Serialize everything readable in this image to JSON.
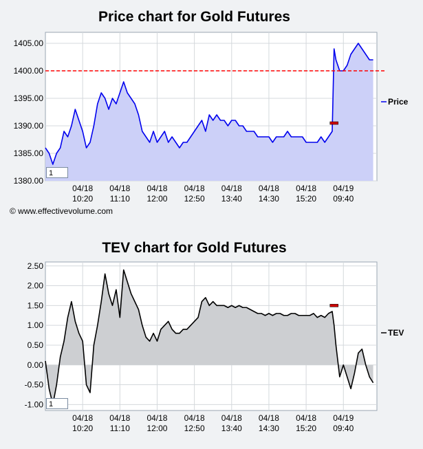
{
  "copyright": "© www.effectivevolume.com",
  "chart_data": [
    {
      "type": "area",
      "title": "Price chart for Gold Futures",
      "legend": "Price",
      "legend_position": "right",
      "series_color": "#0000ee",
      "fill_color": "#ccd0f8",
      "ylim": [
        1380,
        1407
      ],
      "y_ticks": [
        1380.0,
        1385.0,
        1390.0,
        1395.0,
        1400.0,
        1405.0
      ],
      "y_tick_labels": [
        "1380.00",
        "1385.00",
        "1390.00",
        "1395.00",
        "1400.00",
        "1405.00"
      ],
      "x_ticks": [
        10,
        20,
        30,
        40,
        50,
        60,
        70,
        80
      ],
      "x_tick_labels": [
        [
          "04/18",
          "10:20"
        ],
        [
          "04/18",
          "11:10"
        ],
        [
          "04/18",
          "12:00"
        ],
        [
          "04/18",
          "12:50"
        ],
        [
          "04/18",
          "13:40"
        ],
        [
          "04/18",
          "14:30"
        ],
        [
          "04/18",
          "15:20"
        ],
        [
          "04/19",
          "09:40"
        ]
      ],
      "xlim": [
        0,
        89
      ],
      "reference_line": {
        "value": 1400.0,
        "color": "#ff0000",
        "style": "dashed"
      },
      "marker": {
        "x": 77.5,
        "y": 1390.5,
        "color": "#cc0000"
      },
      "page_label": "1",
      "x": [
        0,
        1,
        2,
        3,
        4,
        5,
        6,
        7,
        8,
        9,
        10,
        11,
        12,
        13,
        14,
        15,
        16,
        17,
        18,
        19,
        20,
        21,
        22,
        23,
        24,
        25,
        26,
        27,
        28,
        29,
        30,
        31,
        32,
        33,
        34,
        35,
        36,
        37,
        38,
        39,
        40,
        41,
        42,
        43,
        44,
        45,
        46,
        47,
        48,
        49,
        50,
        51,
        52,
        53,
        54,
        55,
        56,
        57,
        58,
        59,
        60,
        61,
        62,
        63,
        64,
        65,
        66,
        67,
        68,
        69,
        70,
        71,
        72,
        73,
        74,
        75,
        76,
        77,
        77.5,
        78,
        79,
        80,
        81,
        82,
        83,
        84,
        85,
        86,
        87,
        88
      ],
      "values": [
        1386,
        1385,
        1383,
        1385,
        1386,
        1389,
        1388,
        1390,
        1393,
        1391,
        1389,
        1386,
        1387,
        1390,
        1394,
        1396,
        1395,
        1393,
        1395,
        1394,
        1396,
        1398,
        1396,
        1395,
        1394,
        1392,
        1389,
        1388,
        1387,
        1389,
        1387,
        1388,
        1389,
        1387,
        1388,
        1387,
        1386,
        1387,
        1387,
        1388,
        1389,
        1390,
        1391,
        1389,
        1392,
        1391,
        1392,
        1391,
        1391,
        1390,
        1391,
        1391,
        1390,
        1390,
        1389,
        1389,
        1389,
        1388,
        1388,
        1388,
        1388,
        1387,
        1388,
        1388,
        1388,
        1389,
        1388,
        1388,
        1388,
        1388,
        1387,
        1387,
        1387,
        1387,
        1388,
        1387,
        1388,
        1389,
        1404,
        1402,
        1400,
        1400,
        1401,
        1403,
        1404,
        1405,
        1404,
        1403,
        1402,
        1402
      ]
    },
    {
      "type": "area",
      "title": "TEV chart for Gold Futures",
      "legend": "TEV",
      "legend_position": "right",
      "series_color": "#000000",
      "fill_color": "#cdcfd2",
      "ylim": [
        -1.15,
        2.6
      ],
      "y_ticks": [
        -1.0,
        -0.5,
        0.0,
        0.5,
        1.0,
        1.5,
        2.0,
        2.5
      ],
      "y_tick_labels": [
        "-1.00",
        "-0.50",
        "0.00",
        "0.50",
        "1.00",
        "1.50",
        "2.00",
        "2.50"
      ],
      "x_ticks": [
        10,
        20,
        30,
        40,
        50,
        60,
        70,
        80
      ],
      "x_tick_labels": [
        [
          "04/18",
          "10:20"
        ],
        [
          "04/18",
          "11:10"
        ],
        [
          "04/18",
          "12:00"
        ],
        [
          "04/18",
          "12:50"
        ],
        [
          "04/18",
          "13:40"
        ],
        [
          "04/18",
          "14:30"
        ],
        [
          "04/18",
          "15:20"
        ],
        [
          "04/19",
          "09:40"
        ]
      ],
      "xlim": [
        0,
        89
      ],
      "marker": {
        "x": 77.5,
        "y": 1.5,
        "color": "#cc0000"
      },
      "page_label": "1",
      "x": [
        0,
        1,
        2,
        3,
        4,
        5,
        6,
        7,
        8,
        9,
        10,
        11,
        12,
        13,
        14,
        15,
        16,
        17,
        18,
        19,
        20,
        21,
        22,
        23,
        24,
        25,
        26,
        27,
        28,
        29,
        30,
        31,
        32,
        33,
        34,
        35,
        36,
        37,
        38,
        39,
        40,
        41,
        42,
        43,
        44,
        45,
        46,
        47,
        48,
        49,
        50,
        51,
        52,
        53,
        54,
        55,
        56,
        57,
        58,
        59,
        60,
        61,
        62,
        63,
        64,
        65,
        66,
        67,
        68,
        69,
        70,
        71,
        72,
        73,
        74,
        75,
        76,
        77,
        77.5,
        78,
        79,
        80,
        81,
        82,
        83,
        84,
        85,
        86,
        87,
        88
      ],
      "values": [
        0.1,
        -0.6,
        -1.0,
        -0.5,
        0.2,
        0.6,
        1.2,
        1.6,
        1.1,
        0.8,
        0.6,
        -0.5,
        -0.7,
        0.5,
        1.0,
        1.6,
        2.3,
        1.8,
        1.5,
        1.9,
        1.2,
        2.4,
        2.1,
        1.8,
        1.6,
        1.4,
        1.0,
        0.7,
        0.6,
        0.8,
        0.6,
        0.9,
        1.0,
        1.1,
        0.9,
        0.8,
        0.8,
        0.9,
        0.9,
        1.0,
        1.1,
        1.2,
        1.6,
        1.7,
        1.5,
        1.6,
        1.5,
        1.5,
        1.5,
        1.45,
        1.5,
        1.45,
        1.5,
        1.45,
        1.45,
        1.4,
        1.35,
        1.3,
        1.3,
        1.25,
        1.3,
        1.25,
        1.3,
        1.3,
        1.25,
        1.25,
        1.3,
        1.3,
        1.25,
        1.25,
        1.25,
        1.25,
        1.3,
        1.2,
        1.25,
        1.2,
        1.3,
        1.35,
        1.0,
        0.5,
        -0.3,
        0.0,
        -0.3,
        -0.6,
        -0.2,
        0.3,
        0.4,
        0.0,
        -0.3,
        -0.45
      ]
    }
  ]
}
